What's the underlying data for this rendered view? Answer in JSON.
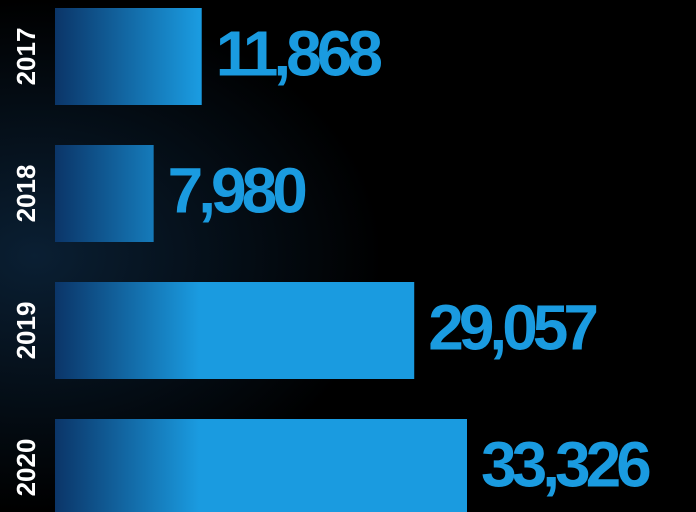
{
  "chart_data": {
    "type": "bar",
    "orientation": "horizontal",
    "categories": [
      "2017",
      "2018",
      "2019",
      "2020"
    ],
    "values": [
      11868,
      7980,
      29057,
      33326
    ],
    "value_labels": [
      "11,868",
      "7,980",
      "29,057",
      "33,326"
    ],
    "color": "#1a9be0"
  }
}
